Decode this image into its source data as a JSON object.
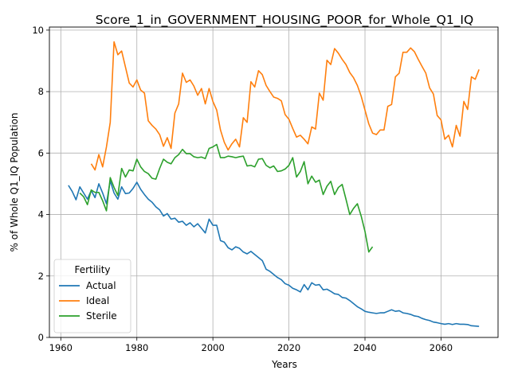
{
  "chart_data": {
    "type": "line",
    "title": "Score_1_in_GOVERNMENT_HOUSING_POOR_for_Whole_Q1_IQ",
    "xlabel": "Years",
    "ylabel": "% of Whole Q1_IQ Population",
    "xlim": [
      1957,
      2075
    ],
    "ylim": [
      0,
      10.1
    ],
    "xticks": [
      1960,
      1980,
      2000,
      2020,
      2040,
      2060
    ],
    "yticks": [
      0,
      2,
      4,
      6,
      8,
      10
    ],
    "grid": true,
    "legend": {
      "title": "Fertility",
      "placement": "lower-left"
    },
    "series": [
      {
        "name": "Actual",
        "color": "#1f77b4",
        "points": [
          [
            1962,
            4.95
          ],
          [
            1963,
            4.75
          ],
          [
            1964,
            4.48
          ],
          [
            1965,
            4.9
          ],
          [
            1966,
            4.7
          ],
          [
            1967,
            4.5
          ],
          [
            1968,
            4.78
          ],
          [
            1969,
            4.55
          ],
          [
            1970,
            5.0
          ],
          [
            1971,
            4.7
          ],
          [
            1972,
            4.35
          ],
          [
            1973,
            5.1
          ],
          [
            1974,
            4.7
          ],
          [
            1975,
            4.5
          ],
          [
            1976,
            4.9
          ],
          [
            1977,
            4.68
          ],
          [
            1978,
            4.7
          ],
          [
            1979,
            4.85
          ],
          [
            1980,
            5.05
          ],
          [
            1981,
            4.82
          ],
          [
            1982,
            4.65
          ],
          [
            1983,
            4.5
          ],
          [
            1984,
            4.4
          ],
          [
            1985,
            4.25
          ],
          [
            1986,
            4.15
          ],
          [
            1987,
            3.95
          ],
          [
            1988,
            4.03
          ],
          [
            1989,
            3.85
          ],
          [
            1990,
            3.88
          ],
          [
            1991,
            3.75
          ],
          [
            1992,
            3.78
          ],
          [
            1993,
            3.65
          ],
          [
            1994,
            3.73
          ],
          [
            1995,
            3.6
          ],
          [
            1996,
            3.7
          ],
          [
            1997,
            3.55
          ],
          [
            1998,
            3.4
          ],
          [
            1999,
            3.85
          ],
          [
            2000,
            3.65
          ],
          [
            2001,
            3.65
          ],
          [
            2002,
            3.15
          ],
          [
            2003,
            3.1
          ],
          [
            2004,
            2.92
          ],
          [
            2005,
            2.85
          ],
          [
            2006,
            2.95
          ],
          [
            2007,
            2.9
          ],
          [
            2008,
            2.78
          ],
          [
            2009,
            2.72
          ],
          [
            2010,
            2.8
          ],
          [
            2011,
            2.7
          ],
          [
            2012,
            2.6
          ],
          [
            2013,
            2.5
          ],
          [
            2014,
            2.22
          ],
          [
            2015,
            2.15
          ],
          [
            2016,
            2.05
          ],
          [
            2017,
            1.95
          ],
          [
            2018,
            1.88
          ],
          [
            2019,
            1.75
          ],
          [
            2020,
            1.7
          ],
          [
            2021,
            1.6
          ],
          [
            2022,
            1.55
          ],
          [
            2023,
            1.48
          ],
          [
            2024,
            1.72
          ],
          [
            2025,
            1.55
          ],
          [
            2026,
            1.78
          ],
          [
            2027,
            1.7
          ],
          [
            2028,
            1.72
          ],
          [
            2029,
            1.55
          ],
          [
            2030,
            1.57
          ],
          [
            2031,
            1.5
          ],
          [
            2032,
            1.42
          ],
          [
            2033,
            1.4
          ],
          [
            2034,
            1.3
          ],
          [
            2035,
            1.28
          ],
          [
            2036,
            1.2
          ],
          [
            2037,
            1.1
          ],
          [
            2038,
            1.0
          ],
          [
            2039,
            0.93
          ],
          [
            2040,
            0.85
          ],
          [
            2041,
            0.82
          ],
          [
            2042,
            0.8
          ],
          [
            2043,
            0.78
          ],
          [
            2044,
            0.8
          ],
          [
            2045,
            0.8
          ],
          [
            2046,
            0.85
          ],
          [
            2047,
            0.9
          ],
          [
            2048,
            0.85
          ],
          [
            2049,
            0.87
          ],
          [
            2050,
            0.8
          ],
          [
            2051,
            0.78
          ],
          [
            2052,
            0.75
          ],
          [
            2053,
            0.7
          ],
          [
            2054,
            0.68
          ],
          [
            2055,
            0.62
          ],
          [
            2056,
            0.58
          ],
          [
            2057,
            0.55
          ],
          [
            2058,
            0.5
          ],
          [
            2059,
            0.48
          ],
          [
            2060,
            0.45
          ],
          [
            2061,
            0.43
          ],
          [
            2062,
            0.45
          ],
          [
            2063,
            0.42
          ],
          [
            2064,
            0.45
          ],
          [
            2065,
            0.43
          ],
          [
            2066,
            0.43
          ],
          [
            2067,
            0.42
          ],
          [
            2068,
            0.38
          ],
          [
            2069,
            0.37
          ],
          [
            2070,
            0.36
          ]
        ]
      },
      {
        "name": "Ideal",
        "color": "#ff7f0e",
        "points": [
          [
            1968,
            5.65
          ],
          [
            1969,
            5.45
          ],
          [
            1970,
            5.95
          ],
          [
            1971,
            5.55
          ],
          [
            1972,
            6.2
          ],
          [
            1973,
            7.0
          ],
          [
            1974,
            9.62
          ],
          [
            1975,
            9.2
          ],
          [
            1976,
            9.32
          ],
          [
            1977,
            8.8
          ],
          [
            1978,
            8.28
          ],
          [
            1979,
            8.15
          ],
          [
            1980,
            8.38
          ],
          [
            1981,
            8.05
          ],
          [
            1982,
            7.95
          ],
          [
            1983,
            7.05
          ],
          [
            1984,
            6.9
          ],
          [
            1985,
            6.78
          ],
          [
            1986,
            6.6
          ],
          [
            1987,
            6.22
          ],
          [
            1988,
            6.5
          ],
          [
            1989,
            6.15
          ],
          [
            1990,
            7.3
          ],
          [
            1991,
            7.6
          ],
          [
            1992,
            8.6
          ],
          [
            1993,
            8.3
          ],
          [
            1994,
            8.38
          ],
          [
            1995,
            8.18
          ],
          [
            1996,
            7.88
          ],
          [
            1997,
            8.1
          ],
          [
            1998,
            7.6
          ],
          [
            1999,
            8.1
          ],
          [
            2000,
            7.68
          ],
          [
            2001,
            7.4
          ],
          [
            2002,
            6.75
          ],
          [
            2003,
            6.35
          ],
          [
            2004,
            6.1
          ],
          [
            2005,
            6.3
          ],
          [
            2006,
            6.45
          ],
          [
            2007,
            6.2
          ],
          [
            2008,
            7.15
          ],
          [
            2009,
            7.0
          ],
          [
            2010,
            8.32
          ],
          [
            2011,
            8.15
          ],
          [
            2012,
            8.68
          ],
          [
            2013,
            8.55
          ],
          [
            2014,
            8.2
          ],
          [
            2015,
            8.0
          ],
          [
            2016,
            7.82
          ],
          [
            2017,
            7.78
          ],
          [
            2018,
            7.7
          ],
          [
            2019,
            7.25
          ],
          [
            2020,
            7.1
          ],
          [
            2021,
            6.8
          ],
          [
            2022,
            6.52
          ],
          [
            2023,
            6.58
          ],
          [
            2024,
            6.45
          ],
          [
            2025,
            6.3
          ],
          [
            2026,
            6.85
          ],
          [
            2027,
            6.78
          ],
          [
            2028,
            7.95
          ],
          [
            2029,
            7.72
          ],
          [
            2030,
            9.02
          ],
          [
            2031,
            8.88
          ],
          [
            2032,
            9.4
          ],
          [
            2033,
            9.25
          ],
          [
            2034,
            9.05
          ],
          [
            2035,
            8.88
          ],
          [
            2036,
            8.62
          ],
          [
            2037,
            8.45
          ],
          [
            2038,
            8.2
          ],
          [
            2039,
            7.85
          ],
          [
            2040,
            7.4
          ],
          [
            2041,
            6.95
          ],
          [
            2042,
            6.65
          ],
          [
            2043,
            6.6
          ],
          [
            2044,
            6.75
          ],
          [
            2045,
            6.75
          ],
          [
            2046,
            7.52
          ],
          [
            2047,
            7.58
          ],
          [
            2048,
            8.48
          ],
          [
            2049,
            8.6
          ],
          [
            2050,
            9.28
          ],
          [
            2051,
            9.28
          ],
          [
            2052,
            9.42
          ],
          [
            2053,
            9.3
          ],
          [
            2054,
            9.05
          ],
          [
            2055,
            8.82
          ],
          [
            2056,
            8.6
          ],
          [
            2057,
            8.12
          ],
          [
            2058,
            7.92
          ],
          [
            2059,
            7.22
          ],
          [
            2060,
            7.08
          ],
          [
            2061,
            6.45
          ],
          [
            2062,
            6.58
          ],
          [
            2063,
            6.2
          ],
          [
            2064,
            6.9
          ],
          [
            2065,
            6.55
          ],
          [
            2066,
            7.68
          ],
          [
            2067,
            7.42
          ],
          [
            2068,
            8.48
          ],
          [
            2069,
            8.4
          ],
          [
            2070,
            8.72
          ]
        ]
      },
      {
        "name": "Sterile",
        "color": "#2ca02c",
        "points": [
          [
            1965,
            4.7
          ],
          [
            1966,
            4.58
          ],
          [
            1967,
            4.32
          ],
          [
            1968,
            4.8
          ],
          [
            1969,
            4.72
          ],
          [
            1970,
            4.72
          ],
          [
            1971,
            4.45
          ],
          [
            1972,
            4.12
          ],
          [
            1973,
            5.2
          ],
          [
            1974,
            4.88
          ],
          [
            1975,
            4.62
          ],
          [
            1976,
            5.5
          ],
          [
            1977,
            5.22
          ],
          [
            1978,
            5.45
          ],
          [
            1979,
            5.42
          ],
          [
            1980,
            5.8
          ],
          [
            1981,
            5.55
          ],
          [
            1982,
            5.4
          ],
          [
            1983,
            5.33
          ],
          [
            1984,
            5.18
          ],
          [
            1985,
            5.15
          ],
          [
            1986,
            5.5
          ],
          [
            1987,
            5.8
          ],
          [
            1988,
            5.7
          ],
          [
            1989,
            5.65
          ],
          [
            1990,
            5.85
          ],
          [
            1991,
            5.95
          ],
          [
            1992,
            6.12
          ],
          [
            1993,
            5.98
          ],
          [
            1994,
            5.98
          ],
          [
            1995,
            5.88
          ],
          [
            1996,
            5.85
          ],
          [
            1997,
            5.87
          ],
          [
            1998,
            5.82
          ],
          [
            1999,
            6.15
          ],
          [
            2000,
            6.2
          ],
          [
            2001,
            6.28
          ],
          [
            2002,
            5.85
          ],
          [
            2003,
            5.85
          ],
          [
            2004,
            5.9
          ],
          [
            2005,
            5.88
          ],
          [
            2006,
            5.85
          ],
          [
            2007,
            5.88
          ],
          [
            2008,
            5.9
          ],
          [
            2009,
            5.58
          ],
          [
            2010,
            5.6
          ],
          [
            2011,
            5.55
          ],
          [
            2012,
            5.8
          ],
          [
            2013,
            5.82
          ],
          [
            2014,
            5.6
          ],
          [
            2015,
            5.52
          ],
          [
            2016,
            5.58
          ],
          [
            2017,
            5.4
          ],
          [
            2018,
            5.42
          ],
          [
            2019,
            5.48
          ],
          [
            2020,
            5.6
          ],
          [
            2021,
            5.85
          ],
          [
            2022,
            5.22
          ],
          [
            2023,
            5.4
          ],
          [
            2024,
            5.72
          ],
          [
            2025,
            5.0
          ],
          [
            2026,
            5.25
          ],
          [
            2027,
            5.05
          ],
          [
            2028,
            5.12
          ],
          [
            2029,
            4.65
          ],
          [
            2030,
            4.92
          ],
          [
            2031,
            5.08
          ],
          [
            2032,
            4.65
          ],
          [
            2033,
            4.88
          ],
          [
            2034,
            4.98
          ],
          [
            2035,
            4.5
          ],
          [
            2036,
            4.0
          ],
          [
            2037,
            4.2
          ],
          [
            2038,
            4.35
          ],
          [
            2039,
            3.95
          ],
          [
            2040,
            3.45
          ],
          [
            2041,
            2.78
          ],
          [
            2042,
            2.95
          ]
        ]
      }
    ]
  }
}
